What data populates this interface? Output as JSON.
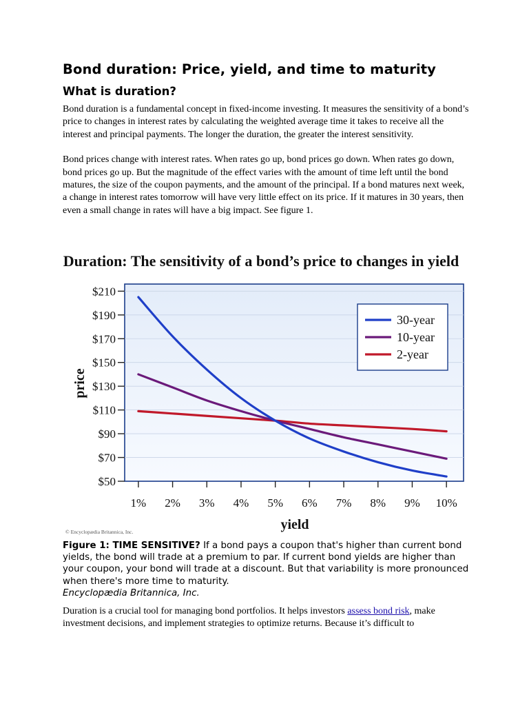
{
  "article": {
    "title": "Bond duration: Price, yield, and time to maturity",
    "subtitle": "What is duration?",
    "paragraph1": "Bond duration is a fundamental concept in fixed-income investing. It measures the sensitivity of a bond’s price to changes in interest rates by calculating the weighted average time it takes to receive all the interest and principal payments. The longer the duration, the greater the interest sensitivity.",
    "paragraph2": "Bond prices change with interest rates. When rates go up, bond prices go down. When rates go down, bond prices go up. But the magnitude of the effect varies with the amount of time left until the bond matures, the size of the coupon payments, and the amount of the principal. If a bond matures next week, a change in interest rates tomorrow will have very little effect on its price. If it matures in 30 years, then even a small change in rates will have a big impact. See figure 1."
  },
  "figure": {
    "copyright": "© Encyclopædia Britannica, Inc.",
    "caption_label": "Figure 1: TIME SENSITIVE?",
    "caption_text": " If a bond pays a coupon that's higher than current bond yields, the bond will trade at a premium to par. If current bond yields are higher than your coupon, your bond will trade at a discount. But that variability is more pronounced when there's more time to maturity.",
    "caption_credit": "Encyclopædia Britannica, Inc."
  },
  "closing": {
    "text_before": "Duration is a crucial tool for managing bond portfolios. It helps investors ",
    "link_text": "assess bond risk",
    "text_after": ", make investment decisions, and implement strategies to optimize returns. Because it’s difficult to"
  },
  "colors": {
    "series_30": "#1f3fc8",
    "series_10": "#6b1a7a",
    "series_2": "#c0192a",
    "plot_bg_top": "#e3ecf9",
    "plot_bg_bottom": "#f7faff",
    "link": "#1a0dab"
  },
  "chart_data": {
    "type": "line",
    "title": "Duration: The sensitivity of a bond’s price to changes in yield",
    "xlabel": "yield",
    "ylabel": "price",
    "x": [
      1,
      2,
      3,
      4,
      5,
      6,
      7,
      8,
      9,
      10
    ],
    "x_tick_labels": [
      "1%",
      "2%",
      "3%",
      "4%",
      "5%",
      "6%",
      "7%",
      "8%",
      "9%",
      "10%"
    ],
    "xlim": [
      0.6,
      10.5
    ],
    "y_ticks": [
      50,
      70,
      90,
      110,
      130,
      150,
      170,
      190,
      210
    ],
    "y_tick_labels": [
      "$50",
      "$70",
      "$90",
      "$110",
      "$130",
      "$150",
      "$170",
      "$190",
      "$210"
    ],
    "ylim": [
      50,
      216
    ],
    "grid": "horizontal",
    "legend_position": "top-right",
    "series": [
      {
        "name": "30-year",
        "color_key": "series_30",
        "values": [
          205,
          172,
          144,
          120,
          101,
          86,
          75,
          66,
          59,
          54
        ]
      },
      {
        "name": "10-year",
        "color_key": "series_10",
        "values": [
          140,
          129,
          118,
          109,
          101,
          94,
          87,
          81,
          75,
          69
        ]
      },
      {
        "name": "2-year",
        "color_key": "series_2",
        "values": [
          109,
          107,
          105,
          103,
          101,
          98.5,
          97,
          95.5,
          94,
          92
        ]
      }
    ]
  }
}
